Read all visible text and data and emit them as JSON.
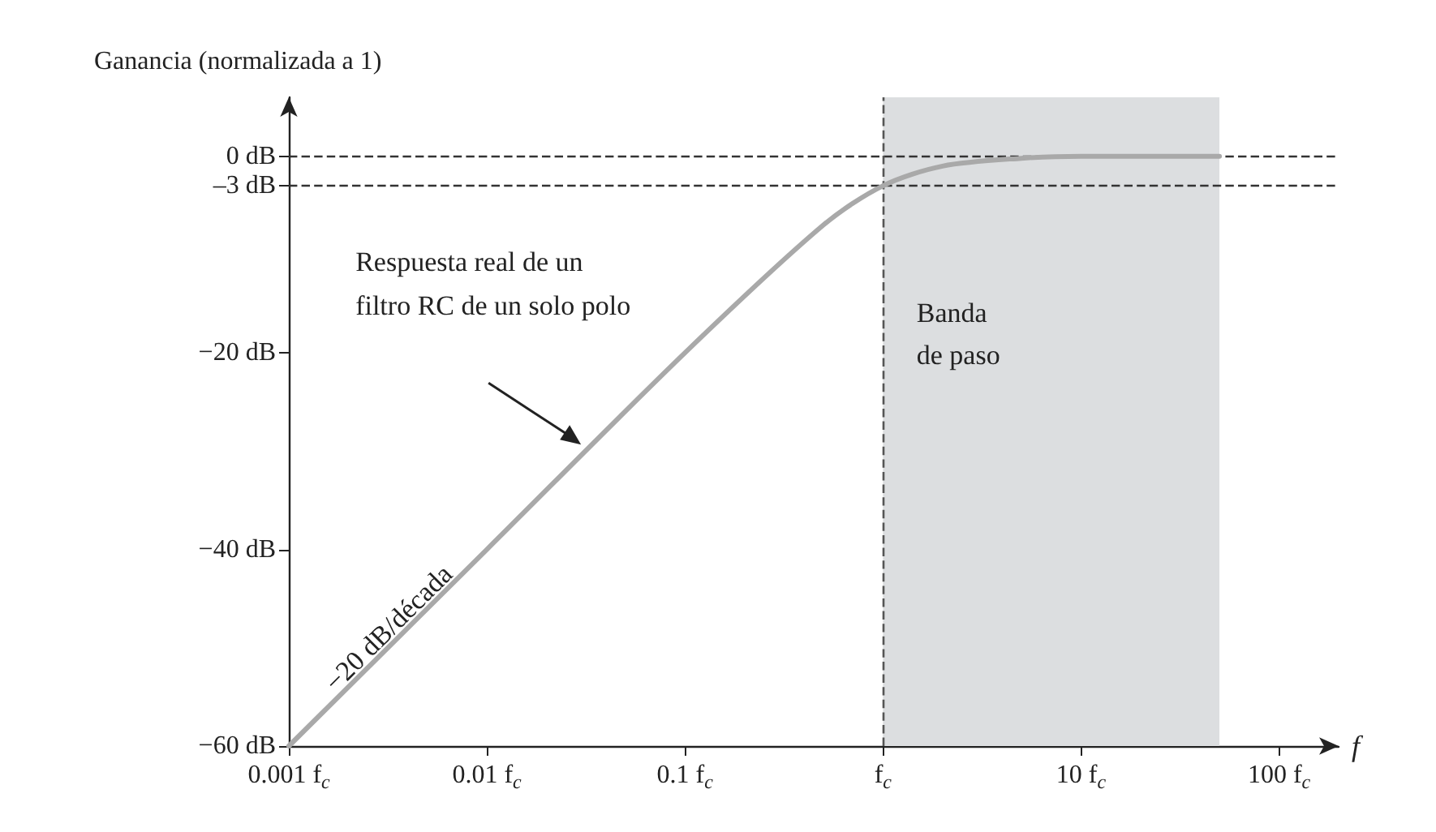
{
  "chart_data": {
    "type": "line",
    "ylabel": "Ganancia (normalizada a 1)",
    "xlabel": "f",
    "log": "x",
    "x": [
      0.001,
      0.01,
      0.1,
      0.5,
      1,
      2,
      5,
      10,
      50
    ],
    "series": [
      {
        "color": "#a9a9a9",
        "values": [
          -60,
          -40,
          -20,
          -7,
          -3,
          -1,
          -0.2,
          0,
          0
        ]
      }
    ],
    "xlim": [
      0.001,
      200
    ],
    "xticks": [
      {
        "value": 0.001,
        "label": "0.001 f$_{c}$"
      },
      {
        "value": 0.01,
        "label": "0.01 f$_{c}$"
      },
      {
        "value": 0.1,
        "label": "0.1 f$_{c}$"
      },
      {
        "value": 1,
        "label": "f$_{c}$"
      },
      {
        "value": 10,
        "label": "10 f$_{c}$"
      },
      {
        "value": 100,
        "label": "100 f$_{c}$"
      }
    ],
    "ylim": [
      -60,
      6
    ],
    "yticks": [
      {
        "value": -60,
        "label": "−60 dB"
      },
      {
        "value": -40,
        "label": "−40 dB"
      },
      {
        "value": -20,
        "label": "−20 dB"
      },
      {
        "value": -3,
        "label": "–3 dB"
      },
      {
        "value": 0,
        "label": "0 dB"
      }
    ],
    "ref_lines": [
      {
        "axis": "y",
        "value": 0,
        "line_style": "dashed",
        "color": "#333333"
      },
      {
        "axis": "y",
        "value": -3,
        "line_style": "dashed",
        "color": "#333333"
      },
      {
        "axis": "x",
        "value": 1,
        "line_style": "dashed",
        "color": "#555555"
      }
    ],
    "bands": [
      {
        "axis": "x",
        "from": 1,
        "to": 50,
        "label": "Banda de paso",
        "color": "#dcdee0"
      }
    ],
    "annotations": [
      "Respuesta real de un filtro RC de un solo polo",
      {
        "text": "−20 dB/década",
        "x": 0.004,
        "y": -48
      }
    ],
    "grid": false,
    "marker": "none",
    "line_style": "solid"
  }
}
